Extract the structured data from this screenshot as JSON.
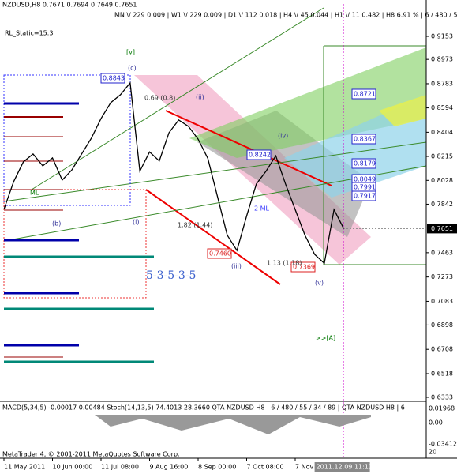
{
  "chart_data": {
    "type": "line",
    "title": "NZDUSD,H8  0.7671 0.7694 0.7649 0.7651",
    "subtitle": "MN \\/ 229  0.009 | W1 \\/ 229  0.009 | D1 \\/ 112  0.018 | H4 \\/ 45  0.044 | H1 \\/ 11  0.482 | H8  6.91 % | 6 / 480 / 55 / 34 / 89",
    "indicator_label": "RL_Static=15.3",
    "categories": [
      "11 May 2011",
      null,
      null,
      null,
      null,
      "10 Jun 00:00",
      null,
      null,
      null,
      null,
      "11 Jul 08:00",
      null,
      null,
      null,
      null,
      "9 Aug 16:00",
      null,
      null,
      null,
      null,
      "8 Sep 00:00",
      null,
      null,
      null,
      null,
      "7 Oct 08:00",
      null,
      null,
      null,
      null,
      "7 Nov 1",
      null,
      null,
      null,
      null,
      null
    ],
    "values": [
      0.7802,
      0.8018,
      0.8172,
      0.8234,
      0.8141,
      0.8203,
      0.803,
      0.811,
      0.8234,
      0.8357,
      0.8511,
      0.8635,
      0.8697,
      0.8789,
      0.81,
      0.825,
      0.818,
      0.84,
      0.85,
      0.845,
      0.835,
      0.82,
      0.79,
      0.76,
      0.748,
      0.775,
      0.8,
      0.81,
      0.822,
      0.8,
      0.78,
      0.76,
      0.745,
      0.738,
      0.78,
      0.7651
    ],
    "color": "#000000",
    "ylim": [
      0.6302,
      0.9406
    ],
    "yticks": [
      0.9153,
      0.8973,
      0.8783,
      0.8594,
      0.8404,
      0.8215,
      0.8028,
      0.7842,
      0.7463,
      0.7273,
      0.7083,
      0.6898,
      0.6708,
      0.6518,
      0.6333
    ],
    "current_price": 0.7651,
    "time_marker": "2011.12.09 11:12",
    "annotations": [
      "[v]",
      "(c)",
      "(iii)",
      "(iv)",
      "(v)",
      "(i)",
      "(b)",
      "(ii)",
      "5-3-5-3-5",
      ">>[A]",
      "0.8843",
      "0.8721",
      "0.8367",
      "0.8242",
      "0.8179",
      "0.8049",
      "0.7991",
      "0.7917",
      "0.7460",
      "0.7369",
      "1.82 (1.44)",
      "1.13 (1.18)",
      "0.69 (0.8)",
      "ML",
      "2 ML"
    ],
    "macd": {
      "label": "MACD(5,34,5) -0.00017 0.00484  Stoch(14,13,5) 74.4013 28.3660  QTA NZDUSD H8 | 6 / 480 / 55 / 34 / 89 | QTA NZDUSD H8 | 6",
      "axis_labels": [
        "0.01968",
        "0.00",
        "-0.03412",
        "20"
      ]
    },
    "footer": "MetaTrader 4, © 2001-2011 MetaQuotes Software Corp."
  }
}
